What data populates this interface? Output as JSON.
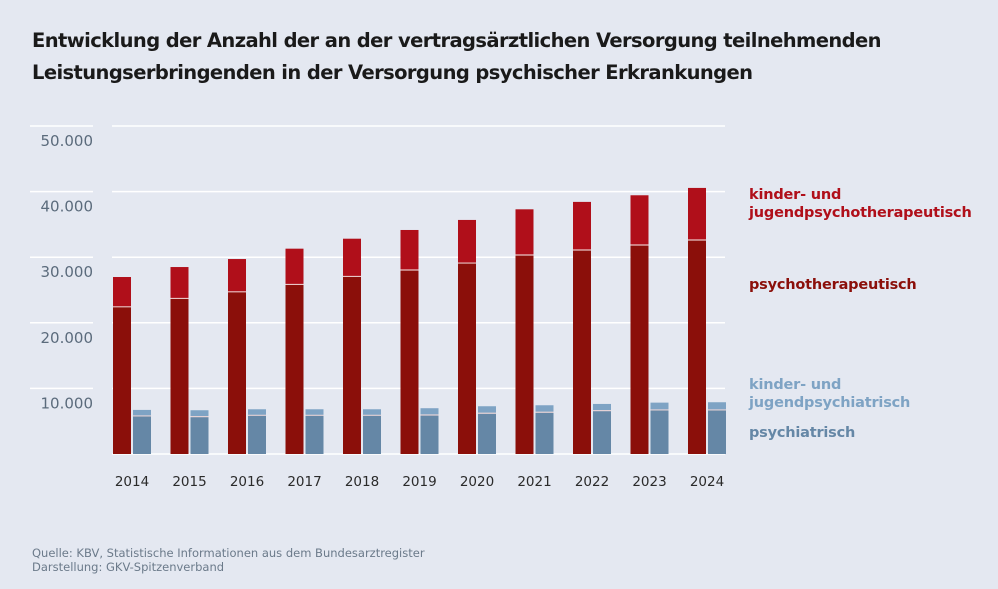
{
  "title_lines": [
    "Entwicklung der Anzahl der an der vertragsärztlichen Versorgung teilnehmenden",
    "Leistungserbringenden in der Versorgung psychischer Erkrankungen"
  ],
  "source_lines": [
    "Quelle: KBV, Statistische Informationen aus dem Bundesarztregister",
    "Darstellung: GKV-Spitzenverband"
  ],
  "colors": {
    "background": "#e4e8f1",
    "psychotherapeutisch": "#8b0f0a",
    "kinder_jugendpsychotherapeutisch": "#b00f1a",
    "psychiatrisch": "#6587a6",
    "kinder_jugendpsychiatrisch": "#7ea3c4",
    "grid": "#ffffff"
  },
  "chart_data": {
    "type": "bar",
    "stacked": true,
    "grouped": true,
    "title": "Entwicklung der Anzahl der an der vertragsärztlichen Versorgung teilnehmenden Leistungserbringenden in der Versorgung psychischer Erkrankungen",
    "xlabel": "",
    "ylabel": "",
    "ylim": [
      0,
      50000
    ],
    "yticks": [
      10000,
      20000,
      30000,
      40000,
      50000
    ],
    "ytick_labels": [
      "10.000",
      "20.000",
      "30.000",
      "40.000",
      "50.000"
    ],
    "grid": true,
    "legend_position": "right",
    "categories": [
      "2014",
      "2015",
      "2016",
      "2017",
      "2018",
      "2019",
      "2020",
      "2021",
      "2022",
      "2023",
      "2024"
    ],
    "groups": [
      {
        "name": "psychotherapy",
        "series": [
          {
            "name": "psychotherapeutisch",
            "color_key": "psychotherapeutisch",
            "values": [
              22440,
              23710,
              24720,
              25850,
              27070,
              28050,
              29110,
              30330,
              31100,
              31860,
              32620
            ]
          },
          {
            "name": "kinder- und jugendpsychotherapeutisch",
            "color_key": "kinder_jugendpsychotherapeutisch",
            "values": [
              4540,
              4790,
              5000,
              5450,
              5750,
              6100,
              6570,
              6970,
              7330,
              7580,
              7940
            ]
          }
        ]
      },
      {
        "name": "psychiatry",
        "series": [
          {
            "name": "psychiatrisch",
            "color_key": "psychiatrisch",
            "values": [
              5800,
              5700,
              5900,
              5900,
              5900,
              5950,
              6210,
              6360,
              6610,
              6720,
              6720
            ]
          },
          {
            "name": "kinder- und jugendpsychiatrisch",
            "color_key": "kinder_jugendpsychiatrisch",
            "values": [
              920,
              970,
              920,
              920,
              920,
              1030,
              1070,
              1070,
              1020,
              1110,
              1170
            ]
          }
        ]
      }
    ],
    "legend": [
      {
        "label_lines": [
          "kinder- und",
          "jugendpsychotherapeutisch"
        ],
        "color_key": "kinder_jugendpsychotherapeutisch"
      },
      {
        "label_lines": [
          "psychotherapeutisch"
        ],
        "color_key": "psychotherapeutisch"
      },
      {
        "label_lines": [
          "kinder- und",
          "jugendpsychiatrisch"
        ],
        "color_key": "kinder_jugendpsychiatrisch"
      },
      {
        "label_lines": [
          "psychiatrisch"
        ],
        "color_key": "psychiatrisch"
      }
    ]
  }
}
